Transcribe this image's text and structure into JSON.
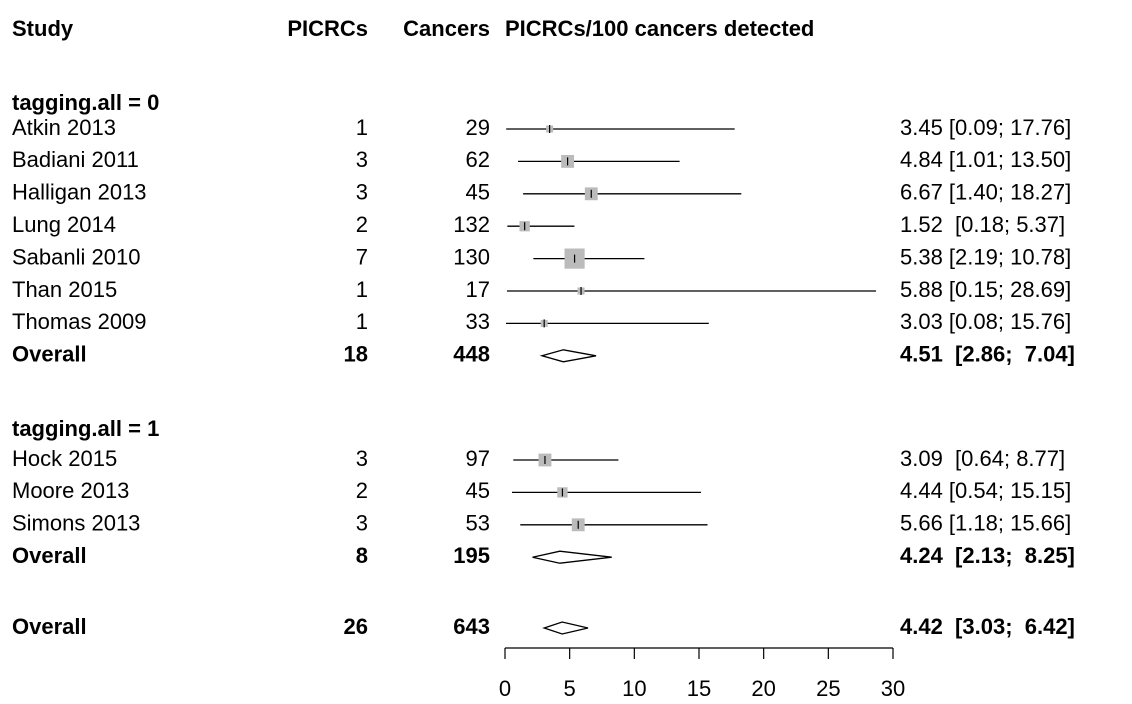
{
  "chart_data": {
    "type": "forest",
    "columns": [
      "Study",
      "PICRCs",
      "Cancers",
      "PICRCs/100 cancers detected"
    ],
    "groups": [
      {
        "label": "tagging.all = 0",
        "studies": [
          {
            "name": "Atkin 2013",
            "events": 1,
            "total": 29,
            "estimate": 3.45,
            "lower": 0.09,
            "upper": 17.76,
            "value_label": "3.45 [0.09; 17.76]"
          },
          {
            "name": "Badiani 2011",
            "events": 3,
            "total": 62,
            "estimate": 4.84,
            "lower": 1.01,
            "upper": 13.5,
            "value_label": "4.84 [1.01; 13.50]"
          },
          {
            "name": "Halligan 2013",
            "events": 3,
            "total": 45,
            "estimate": 6.67,
            "lower": 1.4,
            "upper": 18.27,
            "value_label": "6.67 [1.40; 18.27]"
          },
          {
            "name": "Lung 2014",
            "events": 2,
            "total": 132,
            "estimate": 1.52,
            "lower": 0.18,
            "upper": 5.37,
            "value_label": "1.52  [0.18; 5.37]"
          },
          {
            "name": "Sabanli 2010",
            "events": 7,
            "total": 130,
            "estimate": 5.38,
            "lower": 2.19,
            "upper": 10.78,
            "value_label": "5.38 [2.19; 10.78]"
          },
          {
            "name": "Than 2015",
            "events": 1,
            "total": 17,
            "estimate": 5.88,
            "lower": 0.15,
            "upper": 28.69,
            "value_label": "5.88 [0.15; 28.69]"
          },
          {
            "name": "Thomas 2009",
            "events": 1,
            "total": 33,
            "estimate": 3.03,
            "lower": 0.08,
            "upper": 15.76,
            "value_label": "3.03 [0.08; 15.76]"
          }
        ],
        "overall": {
          "name": "Overall",
          "events": 18,
          "total": 448,
          "estimate": 4.51,
          "lower": 2.86,
          "upper": 7.04,
          "value_label": "4.51  [2.86;  7.04]"
        }
      },
      {
        "label": "tagging.all = 1",
        "studies": [
          {
            "name": "Hock 2015",
            "events": 3,
            "total": 97,
            "estimate": 3.09,
            "lower": 0.64,
            "upper": 8.77,
            "value_label": "3.09  [0.64; 8.77]"
          },
          {
            "name": "Moore 2013",
            "events": 2,
            "total": 45,
            "estimate": 4.44,
            "lower": 0.54,
            "upper": 15.15,
            "value_label": "4.44 [0.54; 15.15]"
          },
          {
            "name": "Simons 2013",
            "events": 3,
            "total": 53,
            "estimate": 5.66,
            "lower": 1.18,
            "upper": 15.66,
            "value_label": "5.66 [1.18; 15.66]"
          }
        ],
        "overall": {
          "name": "Overall",
          "events": 8,
          "total": 195,
          "estimate": 4.24,
          "lower": 2.13,
          "upper": 8.25,
          "value_label": "4.24  [2.13;  8.25]"
        }
      }
    ],
    "overall": {
      "name": "Overall",
      "events": 26,
      "total": 643,
      "estimate": 4.42,
      "lower": 3.03,
      "upper": 6.42,
      "value_label": "4.42  [3.03;  6.42]"
    },
    "xlim": [
      0,
      30
    ],
    "xticks": [
      0,
      5,
      10,
      15,
      20,
      25,
      30
    ],
    "box_color": "#bbbbbb"
  }
}
